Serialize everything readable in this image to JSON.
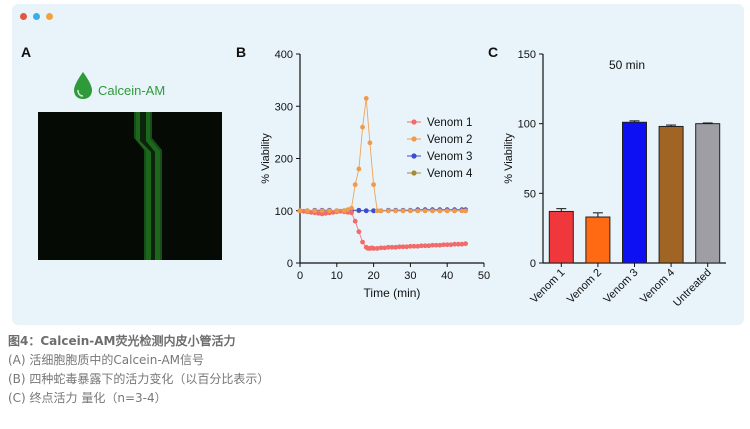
{
  "window_dots": [
    "#e8553e",
    "#3aaee6",
    "#f2a33a"
  ],
  "panels": {
    "a": {
      "letter": "A",
      "stain_label": "Calcein-AM"
    },
    "b": {
      "letter": "B"
    },
    "c": {
      "letter": "C"
    }
  },
  "caption": {
    "title": "图4：Calcein-AM荧光检测内皮小管活力",
    "lines": [
      "(A) 活细胞胞质中的Calcein-AM信号",
      "(B) 四种蛇毒暴露下的活力变化（以百分比表示）",
      "(C) 终点活力 量化（n=3-4）"
    ]
  },
  "chart_data": [
    {
      "type": "scatter",
      "xlabel": "Time (min)",
      "ylabel": "% Viability",
      "xlim": [
        0,
        50
      ],
      "ylim": [
        0,
        400
      ],
      "xticks": [
        0,
        10,
        20,
        30,
        40,
        50
      ],
      "yticks": [
        0,
        100,
        200,
        300,
        400
      ],
      "legend_position": "right",
      "series": [
        {
          "name": "Venom 1",
          "color": "#f26b6b",
          "x": [
            0,
            1,
            2,
            3,
            4,
            5,
            6,
            7,
            8,
            9,
            10,
            11,
            12,
            13,
            14,
            15,
            16,
            17,
            18,
            18.5,
            19,
            19.5,
            20,
            21,
            22,
            23,
            24,
            25,
            26,
            27,
            28,
            29,
            30,
            31,
            32,
            33,
            34,
            35,
            36,
            37,
            38,
            39,
            40,
            41,
            42,
            43,
            44,
            45
          ],
          "y": [
            100,
            99,
            98,
            97,
            96,
            95,
            94,
            95,
            96,
            97,
            98,
            99,
            98,
            97,
            96,
            80,
            60,
            40,
            30,
            28,
            28,
            29,
            28,
            28,
            29,
            29,
            30,
            30,
            30,
            31,
            31,
            31,
            32,
            32,
            32,
            33,
            33,
            33,
            34,
            34,
            34,
            35,
            35,
            35,
            36,
            36,
            36,
            37
          ]
        },
        {
          "name": "Venom 2",
          "color": "#f09a4a",
          "x": [
            0,
            2,
            4,
            6,
            8,
            10,
            12,
            13,
            14,
            15,
            16,
            17,
            18,
            19,
            20,
            21,
            22,
            24,
            26,
            28,
            30,
            32,
            34,
            36,
            38,
            40,
            42,
            44,
            45
          ],
          "y": [
            100,
            100,
            100,
            100,
            100,
            100,
            100,
            102,
            105,
            150,
            180,
            260,
            315,
            230,
            150,
            100,
            100,
            100,
            100,
            100,
            100,
            100,
            100,
            100,
            100,
            100,
            100,
            100,
            100
          ]
        },
        {
          "name": "Venom 3",
          "color": "#3b4bd6",
          "x": [
            0,
            2,
            4,
            6,
            8,
            10,
            12,
            14,
            16,
            18,
            20,
            22,
            24,
            26,
            28,
            30,
            32,
            34,
            36,
            38,
            40,
            42,
            44,
            45
          ],
          "y": [
            100,
            100,
            101,
            101,
            101,
            100,
            100,
            101,
            101,
            100,
            100,
            100,
            101,
            101,
            101,
            101,
            102,
            102,
            102,
            102,
            102,
            102,
            102,
            102
          ]
        },
        {
          "name": "Venom 4",
          "color": "#a88a36",
          "x": [
            0,
            2,
            4,
            6,
            8,
            10,
            12,
            14,
            16,
            18,
            20,
            22,
            24,
            26,
            28,
            30,
            32,
            34,
            36,
            38,
            40,
            42,
            44,
            45
          ],
          "y": [
            100,
            100,
            100,
            100,
            100,
            100,
            100,
            100,
            100,
            100,
            100,
            100,
            100,
            100,
            100,
            100,
            100,
            100,
            100,
            100,
            100,
            100,
            100,
            100
          ]
        }
      ]
    },
    {
      "type": "bar",
      "annotation": "50 min",
      "ylabel": "% Viability",
      "ylim": [
        0,
        150
      ],
      "yticks": [
        0,
        50,
        100,
        150
      ],
      "categories": [
        "Venom 1",
        "Venom 2",
        "Venom 3",
        "Venom 4",
        "Untreated"
      ],
      "values": [
        37,
        33,
        101,
        98,
        100
      ],
      "errors": [
        2,
        3,
        1,
        1,
        0.5
      ],
      "colors": [
        "#f0383c",
        "#ff6a12",
        "#0c10f2",
        "#a06424",
        "#9e9ea4"
      ]
    }
  ]
}
